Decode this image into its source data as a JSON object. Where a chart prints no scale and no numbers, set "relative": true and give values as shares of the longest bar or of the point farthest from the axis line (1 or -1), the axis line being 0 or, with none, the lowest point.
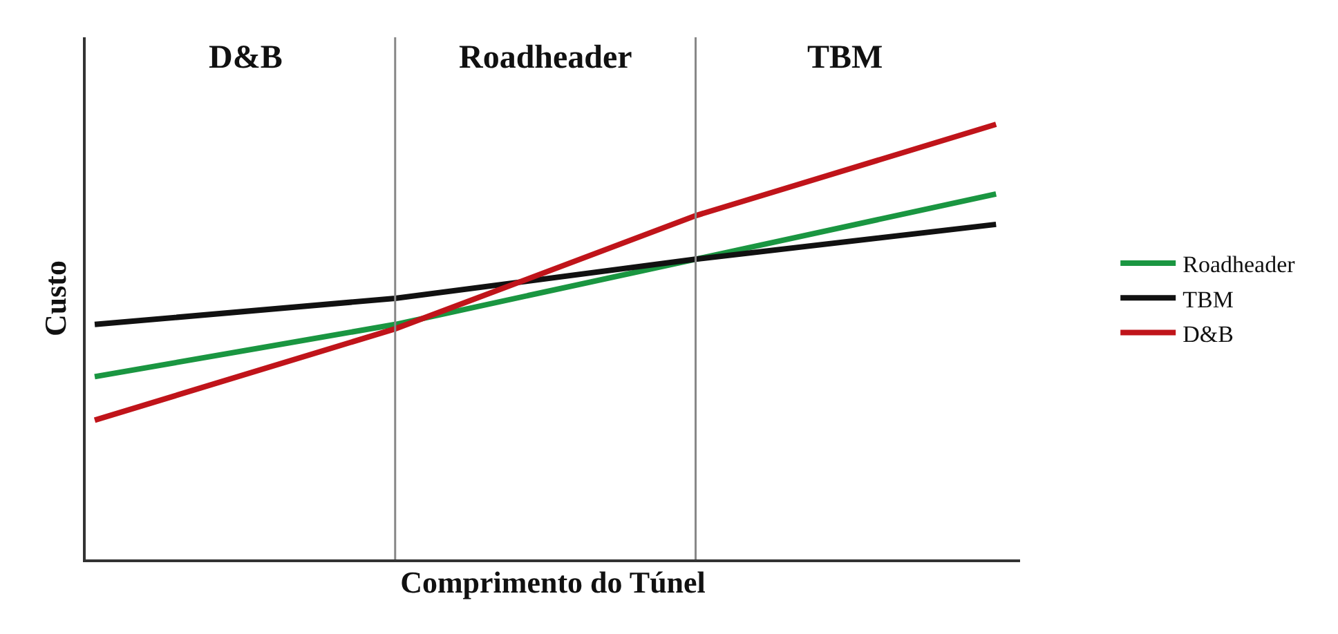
{
  "chart_data": {
    "type": "line",
    "relative": true,
    "xlabel": "Comprimento do Túnel",
    "ylabel": "Custo",
    "categories": [
      null,
      null,
      null,
      null
    ],
    "tick_labels": false,
    "legend": "right",
    "marker": "none",
    "line_style": "solid",
    "series": [
      {
        "name": "Roadheader",
        "color": "#1a9641",
        "values": [
          0.42,
          0.54,
          0.69,
          0.84
        ]
      },
      {
        "name": "TBM",
        "color": "#111111",
        "values": [
          0.54,
          0.6,
          0.69,
          0.77
        ]
      },
      {
        "name": "D&B",
        "color": "#c0141a",
        "values": [
          0.32,
          0.53,
          0.79,
          1
        ]
      }
    ],
    "annotations": [
      "D&B",
      "Roadheader",
      "TBM"
    ]
  }
}
